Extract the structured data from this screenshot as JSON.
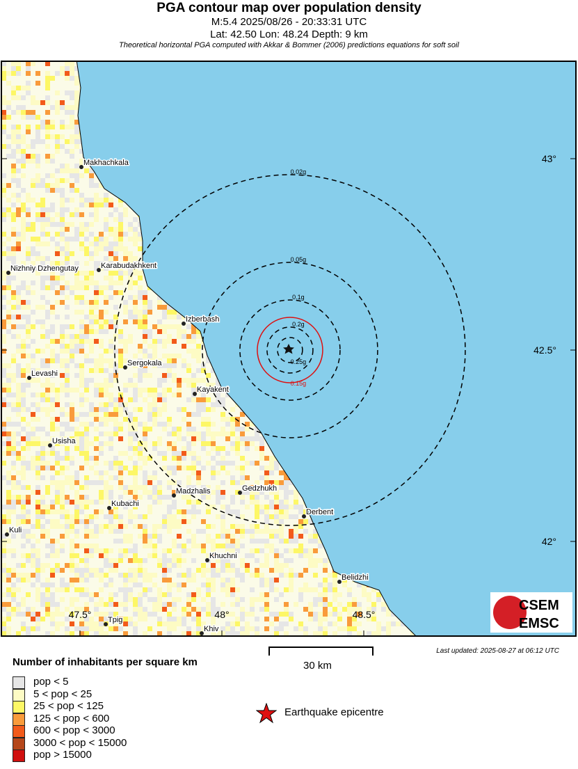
{
  "header": {
    "title": "PGA contour map over population density",
    "line1": "M:5.4 2025/08/26 - 20:33:31 UTC",
    "line2": "Lat: 42.50 Lon: 48.24 Depth: 9 km",
    "line3": "Theoretical horizontal PGA computed with Akkar & Bommer (2006) predictions equations for soft soil"
  },
  "map": {
    "sea_color": "#87ceeb",
    "lat_labels": [
      "43°",
      "42.5°",
      "42°"
    ],
    "lon_labels": [
      "47.5°",
      "48°",
      "48.5°"
    ],
    "epicentre": {
      "lat": 42.5,
      "lon": 48.24
    },
    "contours": [
      {
        "label": "0.02g",
        "color": "#000000",
        "style": "dashed"
      },
      {
        "label": "0.05g",
        "color": "#000000",
        "style": "dashed"
      },
      {
        "label": "0.1g",
        "color": "#000000",
        "style": "dashed"
      },
      {
        "label": "0.15g",
        "color": "#dd1111",
        "style": "solid"
      },
      {
        "label": "0.2g",
        "color": "#000000",
        "style": "dashed"
      },
      {
        "label": "0.25g",
        "color": "#000000",
        "style": "dashed"
      }
    ],
    "cities": [
      "Makhachkala",
      "Nizhniy Dzhengutay",
      "Karabudakhkent",
      "Izberbash",
      "Sergokala",
      "Levashi",
      "Kayakent",
      "Usisha",
      "Madzhalis",
      "Gedzhukh",
      "Kubachi",
      "Derbent",
      "Kuli",
      "Khuchni",
      "Belidzhi",
      "Tpig",
      "Khiv"
    ],
    "logo": "CSEM EMSC"
  },
  "scale": {
    "label": "30 km"
  },
  "updated": "Last updated: 2025-08-27 at 06:12 UTC",
  "legend": {
    "title": "Number of inhabitants per square km",
    "items": [
      {
        "label": "pop < 5",
        "color": "#e6e6e6"
      },
      {
        "label": "5 < pop < 25",
        "color": "#fdfbc4"
      },
      {
        "label": "25 < pop < 125",
        "color": "#fdf766"
      },
      {
        "label": "125 < pop < 600",
        "color": "#f99b3b"
      },
      {
        "label": "600 < pop < 3000",
        "color": "#f25a1a"
      },
      {
        "label": "3000 < pop < 15000",
        "color": "#b5471a"
      },
      {
        "label": "pop > 15000",
        "color": "#d0100f"
      }
    ],
    "epicentre_label": "Earthquake epicentre"
  }
}
